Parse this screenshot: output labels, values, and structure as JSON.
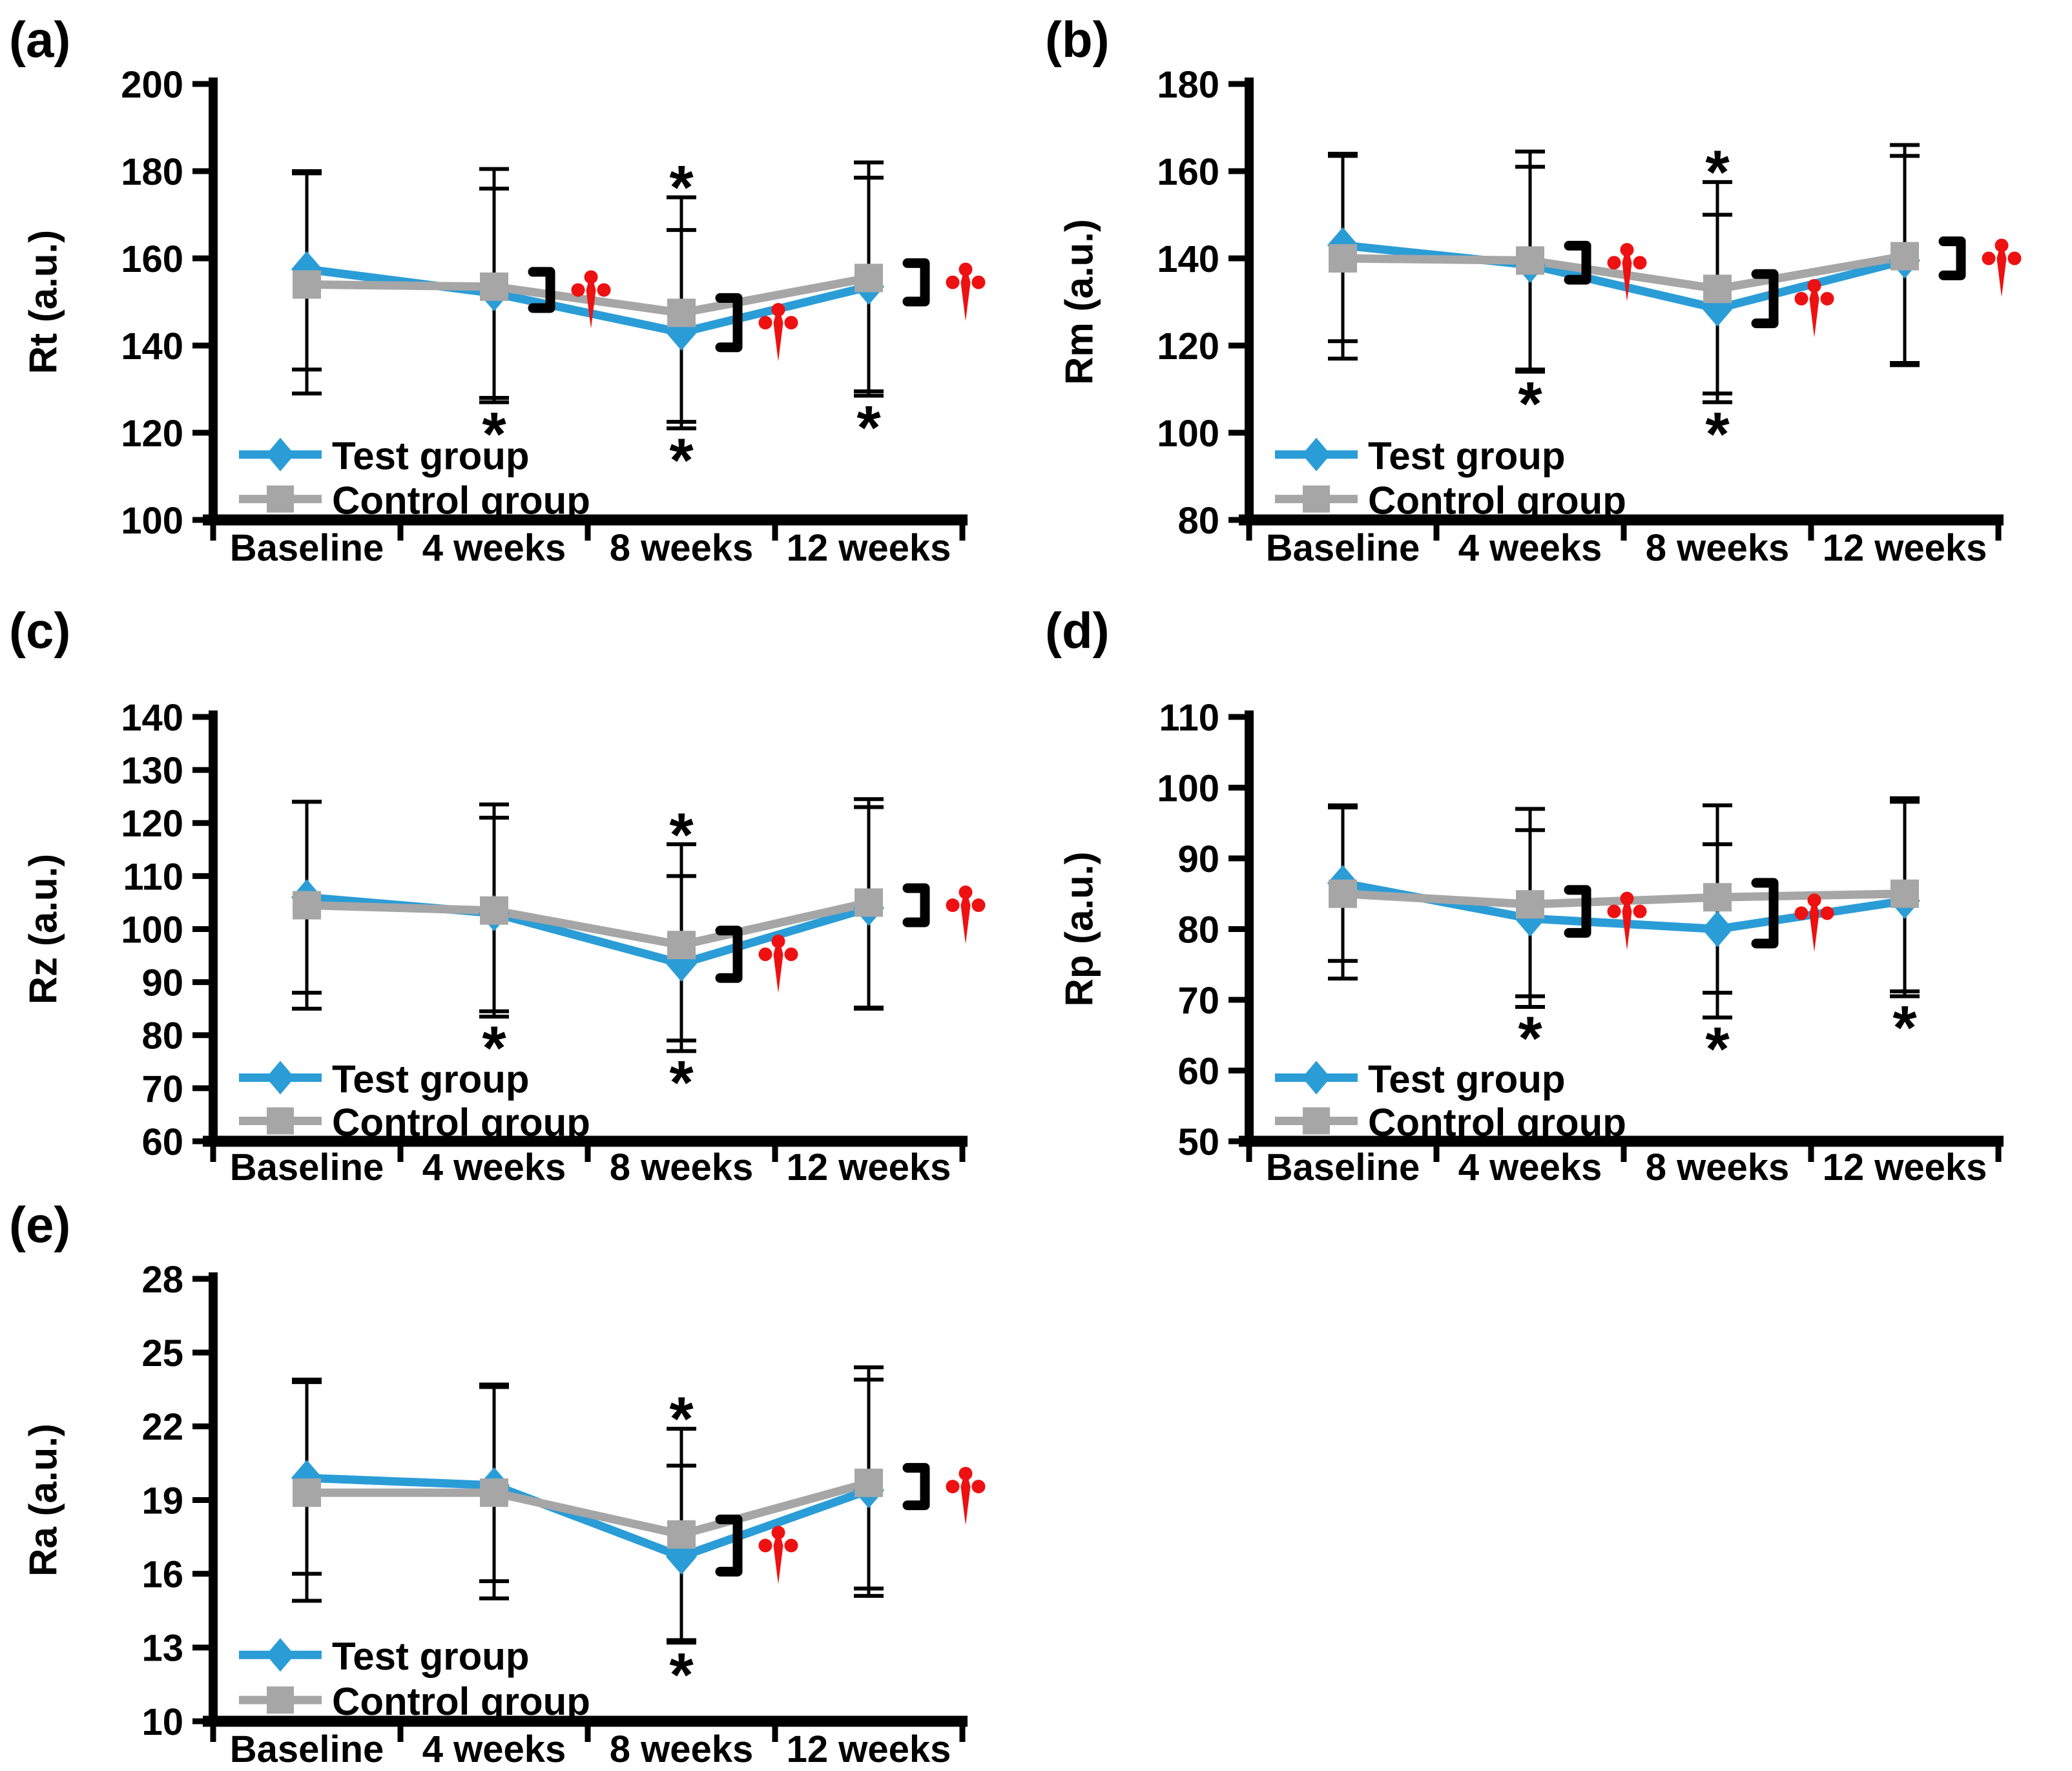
{
  "legend": {
    "test_label": "Test group",
    "control_label": "Control group"
  },
  "x_categories": [
    "Baseline",
    "4 weeks",
    "8 weeks",
    "12 weeks"
  ],
  "colors": {
    "test": "#2A9DD7",
    "control": "#A6A6A6",
    "dagger_red": "#ED1111",
    "gray_star": "#8C8C8C",
    "blue_star": "#2A9DD7",
    "axis_black": "#000000"
  },
  "chart_data": [
    {
      "panel_label": "(a)",
      "type": "line",
      "ylabel": "Rt (a.u.)",
      "ymin": 100,
      "ymax": 200,
      "ytick_step": 20,
      "categories": [
        "Baseline",
        "4 weeks",
        "8 weeks",
        "12 weeks"
      ],
      "series": [
        {
          "name": "Test group",
          "values": [
            157.5,
            152,
            143,
            153.5
          ],
          "err_hi": [
            179.5,
            180.5,
            174,
            182
          ],
          "err_lo": [
            129,
            127,
            121,
            128.5
          ]
        },
        {
          "name": "Control group",
          "values": [
            154,
            153.5,
            147.5,
            155.5
          ],
          "err_hi": [
            180,
            176,
            166.5,
            178.5
          ],
          "err_lo": [
            134.5,
            128,
            122.5,
            129.5
          ]
        }
      ],
      "annotations": {
        "gray_star_at": [
          2
        ],
        "blue_star_at": [
          1,
          2,
          3
        ],
        "dagger_bracket_at": [
          1,
          2,
          3
        ]
      }
    },
    {
      "panel_label": "(b)",
      "type": "line",
      "ylabel": "Rm (a.u.)",
      "ymin": 80,
      "ymax": 180,
      "ytick_step": 20,
      "categories": [
        "Baseline",
        "4 weeks",
        "8 weeks",
        "12 weeks"
      ],
      "series": [
        {
          "name": "Test group",
          "values": [
            143,
            138.5,
            128.5,
            139.5
          ],
          "err_hi": [
            164,
            164.5,
            157.5,
            166
          ],
          "err_lo": [
            117,
            114,
            107,
            115.5
          ]
        },
        {
          "name": "Control group",
          "values": [
            140,
            139.5,
            133,
            140.5
          ],
          "err_hi": [
            163.5,
            161,
            150,
            163.5
          ],
          "err_lo": [
            121,
            114.5,
            109,
            116
          ]
        }
      ],
      "annotations": {
        "gray_star_at": [
          2
        ],
        "blue_star_at": [
          1,
          2
        ],
        "dagger_bracket_at": [
          1,
          2,
          3
        ]
      }
    },
    {
      "panel_label": "(c)",
      "type": "line",
      "ylabel": "Rz (a.u.)",
      "ymin": 60,
      "ymax": 140,
      "ytick_step": 10,
      "categories": [
        "Baseline",
        "4 weeks",
        "8 weeks",
        "12 weeks"
      ],
      "series": [
        {
          "name": "Test group",
          "values": [
            106,
            103,
            93.5,
            104
          ],
          "err_hi": [
            124,
            123.5,
            116,
            124.5
          ],
          "err_lo": [
            85,
            83.5,
            77,
            85
          ]
        },
        {
          "name": "Control group",
          "values": [
            104.5,
            103.5,
            97,
            105
          ],
          "err_hi": [
            124,
            121,
            110,
            123
          ],
          "err_lo": [
            88,
            84.5,
            79,
            85.2
          ]
        }
      ],
      "annotations": {
        "gray_star_at": [
          2
        ],
        "blue_star_at": [
          1,
          2
        ],
        "dagger_bracket_at": [
          2,
          3
        ]
      }
    },
    {
      "panel_label": "(d)",
      "type": "line",
      "ylabel": "Rp (a.u.)",
      "ymin": 50,
      "ymax": 110,
      "ytick_step": 10,
      "categories": [
        "Baseline",
        "4 weeks",
        "8 weeks",
        "12 weeks"
      ],
      "series": [
        {
          "name": "Test group",
          "values": [
            86.5,
            81.5,
            80,
            84
          ],
          "err_hi": [
            97.5,
            97,
            97.5,
            98.5
          ],
          "err_lo": [
            73,
            69,
            67.5,
            70.5
          ]
        },
        {
          "name": "Control group",
          "values": [
            85,
            83.5,
            84.5,
            85
          ],
          "err_hi": [
            97.2,
            94,
            92,
            98
          ],
          "err_lo": [
            75.5,
            70.5,
            71,
            71.2
          ]
        }
      ],
      "annotations": {
        "gray_star_at": [],
        "blue_star_at": [
          1,
          2,
          3
        ],
        "dagger_bracket_at": [
          1,
          2
        ]
      }
    },
    {
      "panel_label": "(e)",
      "type": "line",
      "ylabel": "Ra (a.u.)",
      "ymin": 10,
      "ymax": 28,
      "ytick_step": 3,
      "categories": [
        "Baseline",
        "4 weeks",
        "8 weeks",
        "12 weeks"
      ],
      "series": [
        {
          "name": "Test group",
          "values": [
            19.9,
            19.6,
            16.7,
            19.4
          ],
          "err_hi": [
            23.9,
            23.6,
            20.4,
            24.4
          ],
          "err_lo": [
            14.9,
            15.0,
            13.3,
            15.1
          ]
        },
        {
          "name": "Control group",
          "values": [
            19.3,
            19.3,
            17.6,
            19.7
          ],
          "err_hi": [
            23.8,
            23.7,
            21.9,
            23.9
          ],
          "err_lo": [
            16.0,
            15.7,
            13.2,
            15.4
          ]
        }
      ],
      "annotations": {
        "gray_star_at": [
          2
        ],
        "blue_star_at": [
          2
        ],
        "dagger_bracket_at": [
          2,
          3
        ]
      }
    }
  ]
}
